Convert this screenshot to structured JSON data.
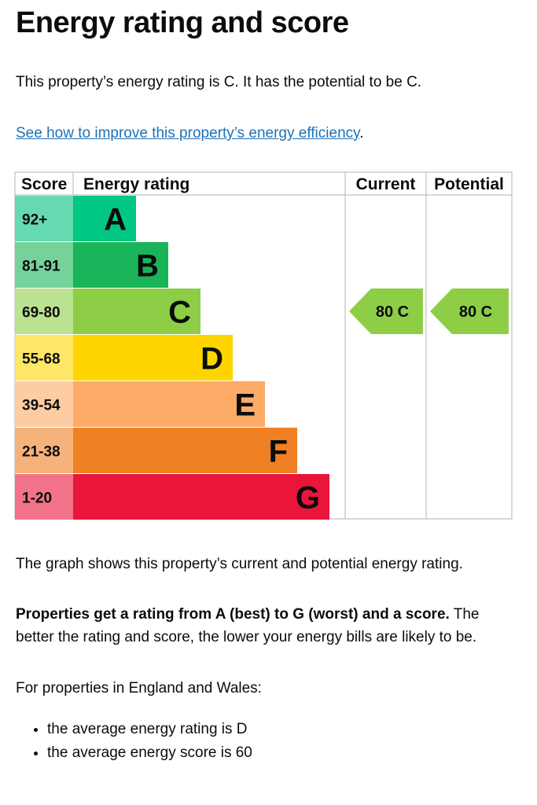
{
  "title": "Energy rating and score",
  "rating_sentence": "This property’s energy rating is C. It has the potential to be C.",
  "link_text": "See how to improve this property’s energy efficiency",
  "link_suffix": ".",
  "graph_caption": "The graph shows this property’s current and potential energy rating.",
  "properties_bold": "Properties get a rating from A (best) to G (worst) and a score.",
  "properties_rest": " The better the rating and score, the lower your energy bills are likely to be.",
  "england_wales": "For properties in England and Wales:",
  "bullets": [
    "the average energy rating is D",
    "the average energy score is 60"
  ],
  "chart_data": {
    "type": "bar",
    "headers": {
      "score": "Score",
      "rating": "Energy rating",
      "current": "Current",
      "potential": "Potential"
    },
    "bands": [
      {
        "score": "92+",
        "letter": "A",
        "color": "#00c781",
        "light": "#66d9b0"
      },
      {
        "score": "81-91",
        "letter": "B",
        "color": "#19b459",
        "light": "#75d29b"
      },
      {
        "score": "69-80",
        "letter": "C",
        "color": "#8dce46",
        "light": "#bbe290"
      },
      {
        "score": "55-68",
        "letter": "D",
        "color": "#ffd500",
        "light": "#ffe666"
      },
      {
        "score": "39-54",
        "letter": "E",
        "color": "#fcaa65",
        "light": "#fdcca3"
      },
      {
        "score": "21-38",
        "letter": "F",
        "color": "#ef8023",
        "light": "#f5b37b"
      },
      {
        "score": "1-20",
        "letter": "G",
        "color": "#e9153b",
        "light": "#f27389"
      }
    ],
    "current": {
      "score": 80,
      "band": "C",
      "label": "80 C",
      "color": "#8dce46"
    },
    "potential": {
      "score": 80,
      "band": "C",
      "label": "80 C",
      "color": "#8dce46"
    }
  }
}
